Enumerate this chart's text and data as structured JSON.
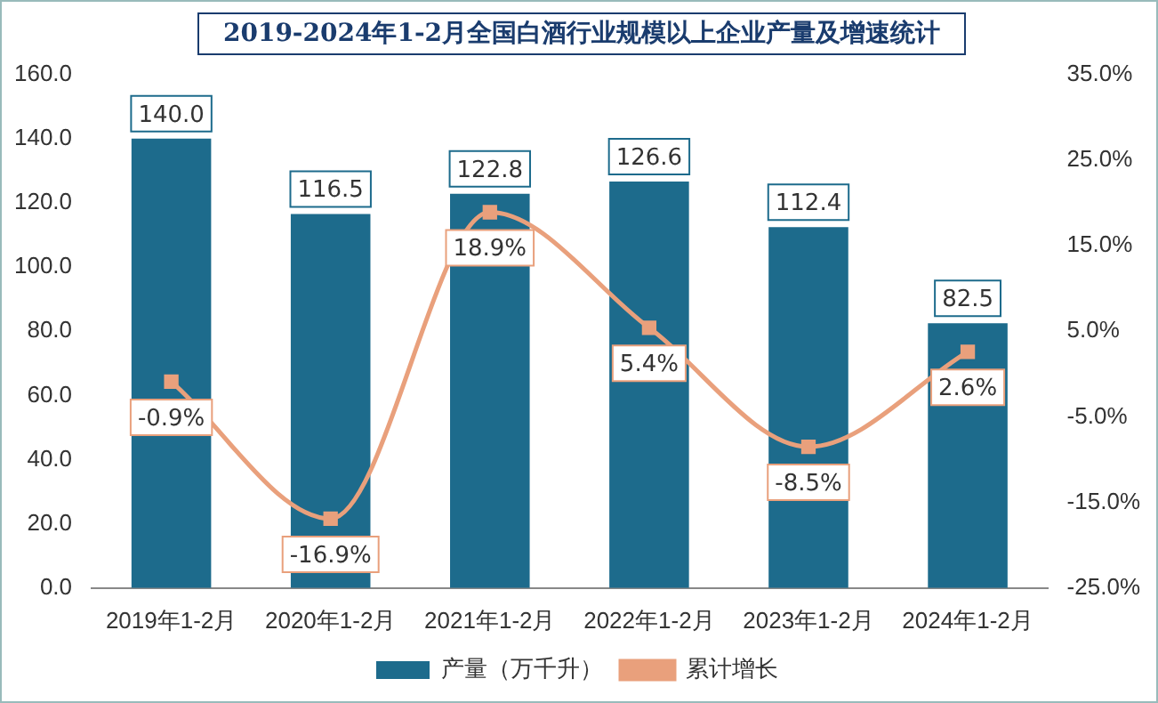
{
  "chart_data": {
    "type": "bar",
    "title": "2019-2024年1-2月全国白酒行业规模以上企业产量及增速统计",
    "categories": [
      "2019年1-2月",
      "2020年1-2月",
      "2021年1-2月",
      "2022年1-2月",
      "2023年1-2月",
      "2024年1-2月"
    ],
    "series": [
      {
        "name": "产量（万千升）",
        "color": "#1d6b8c",
        "values": [
          140.0,
          116.5,
          122.8,
          126.6,
          112.4,
          82.5
        ],
        "value_labels": [
          "140.0",
          "116.5",
          "122.8",
          "126.6",
          "112.4",
          "82.5"
        ]
      },
      {
        "name": "累计增长",
        "type": "line",
        "axis": "y2",
        "color": "#e9a07c",
        "marker": "square",
        "values": [
          -0.9,
          -16.9,
          18.9,
          5.4,
          -8.5,
          2.6
        ],
        "value_labels": [
          "-0.9%",
          "-16.9%",
          "18.9%",
          "5.4%",
          "-8.5%",
          "2.6%"
        ]
      }
    ],
    "ylim": [
      0,
      160
    ],
    "yticks": [
      {
        "value": 0,
        "label": "0.0"
      },
      {
        "value": 20,
        "label": "20.0"
      },
      {
        "value": 40,
        "label": "40.0"
      },
      {
        "value": 60,
        "label": "60.0"
      },
      {
        "value": 80,
        "label": "80.0"
      },
      {
        "value": 100,
        "label": "100.0"
      },
      {
        "value": 120,
        "label": "120.0"
      },
      {
        "value": 140,
        "label": "140.0"
      },
      {
        "value": 160,
        "label": "160.0"
      }
    ],
    "y2lim": [
      -25,
      35
    ],
    "y2ticks": [
      {
        "value": -25,
        "label": "-25.0%"
      },
      {
        "value": -15,
        "label": "-15.0%"
      },
      {
        "value": -5,
        "label": "-5.0%"
      },
      {
        "value": 5,
        "label": "5.0%"
      },
      {
        "value": 15,
        "label": "15.0%"
      },
      {
        "value": 25,
        "label": "25.0%"
      },
      {
        "value": 35,
        "label": "35.0%"
      }
    ],
    "grid": false,
    "legend": "bottom",
    "data_labels": true
  }
}
